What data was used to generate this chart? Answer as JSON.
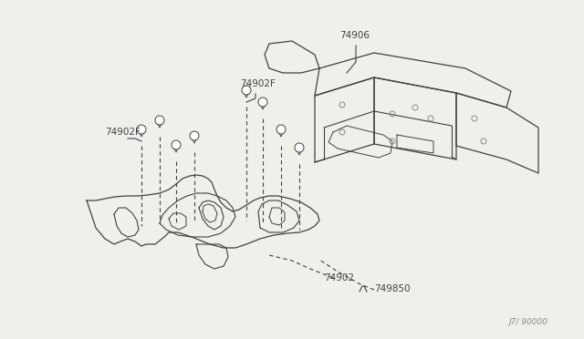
{
  "bg_color": "#f0f0eb",
  "line_color": "#404040",
  "label_color": "#404040",
  "watermark": "J7/ 90000",
  "figsize": [
    6.4,
    3.72
  ],
  "dpi": 100,
  "pin_color": "#404040",
  "hole_color": "#888888"
}
